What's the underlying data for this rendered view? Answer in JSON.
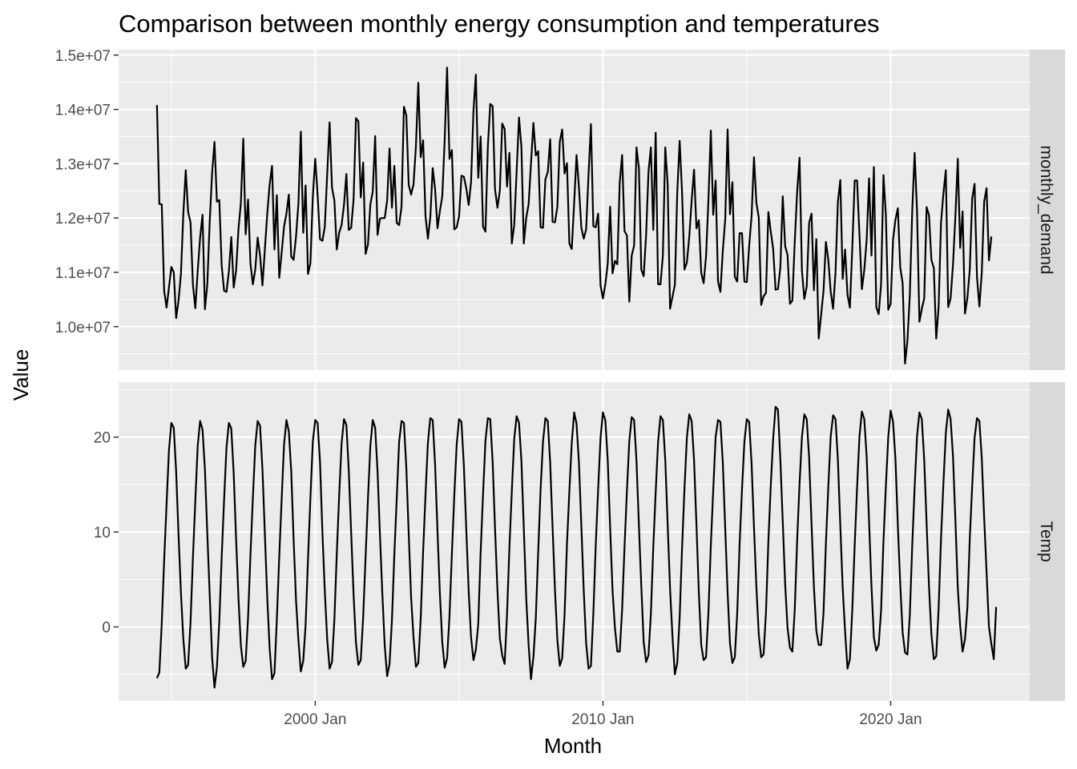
{
  "chart_data": {
    "type": "line",
    "title": "Comparison between monthly energy consumption and temperatures",
    "xlabel": "Month",
    "ylabel": "Value",
    "x_start": "1994-07",
    "x_range": [
      "1993-03",
      "2024-11"
    ],
    "x_ticks": [
      "2000 Jan",
      "2010 Jan",
      "2020 Jan"
    ],
    "x_tick_values": [
      "2000-01",
      "2010-01",
      "2020-01"
    ],
    "grid": true,
    "facets": [
      {
        "name": "monthly_demand",
        "ylim": [
          9200000,
          15100000
        ],
        "y_ticks": [
          "1.0e+07",
          "1.1e+07",
          "1.2e+07",
          "1.3e+07",
          "1.4e+07",
          "1.5e+07"
        ],
        "y_tick_values": [
          10000000,
          11000000,
          12000000,
          13000000,
          14000000,
          15000000
        ],
        "values": [
          14080000,
          12260000,
          12250000,
          10660000,
          10350000,
          10720000,
          11100000,
          11000000,
          10160000,
          10480000,
          10970000,
          12080000,
          12880000,
          12110000,
          11920000,
          10770000,
          10340000,
          11030000,
          11640000,
          12060000,
          10320000,
          10780000,
          11930000,
          12830000,
          13400000,
          12300000,
          12330000,
          11120000,
          10660000,
          10640000,
          11020000,
          11650000,
          10720000,
          11030000,
          11800000,
          12280000,
          13460000,
          11700000,
          12340000,
          11160000,
          10780000,
          11050000,
          11640000,
          11310000,
          10760000,
          11420000,
          12080000,
          12620000,
          12960000,
          11420000,
          12420000,
          10900000,
          11360000,
          11840000,
          12080000,
          12430000,
          11290000,
          11230000,
          11660000,
          12270000,
          13590000,
          11730000,
          12600000,
          10970000,
          11170000,
          12390000,
          13090000,
          12430000,
          11610000,
          11580000,
          11840000,
          12810000,
          13760000,
          12560000,
          12320000,
          11420000,
          11730000,
          11870000,
          12240000,
          12810000,
          11780000,
          11820000,
          12340000,
          13840000,
          13780000,
          12380000,
          13020000,
          11340000,
          11510000,
          12250000,
          12490000,
          13510000,
          11690000,
          11990000,
          12000000,
          12000000,
          12320000,
          13280000,
          12190000,
          12960000,
          11910000,
          11870000,
          12210000,
          14050000,
          13890000,
          12610000,
          12430000,
          12620000,
          13320000,
          14490000,
          13120000,
          13430000,
          12040000,
          11620000,
          12010000,
          12920000,
          12530000,
          11810000,
          12130000,
          12400000,
          13440000,
          14770000,
          13090000,
          13250000,
          11790000,
          11830000,
          12030000,
          12780000,
          12760000,
          12550000,
          12240000,
          12660000,
          13970000,
          14640000,
          12740000,
          13500000,
          11840000,
          11750000,
          13310000,
          14100000,
          14060000,
          12530000,
          12190000,
          12500000,
          13740000,
          13640000,
          12580000,
          13200000,
          11530000,
          11870000,
          12850000,
          13850000,
          13310000,
          11530000,
          12000000,
          12250000,
          13010000,
          13750000,
          13150000,
          13230000,
          11830000,
          11820000,
          12710000,
          12850000,
          13450000,
          11930000,
          11920000,
          12210000,
          13400000,
          13630000,
          12820000,
          13010000,
          11530000,
          11430000,
          12280000,
          13160000,
          12560000,
          11820000,
          11620000,
          11790000,
          12800000,
          13730000,
          11850000,
          11830000,
          12080000,
          10760000,
          10520000,
          10780000,
          11160000,
          12210000,
          10980000,
          11210000,
          11150000,
          12650000,
          13160000,
          11760000,
          11680000,
          10460000,
          11310000,
          11490000,
          13300000,
          12920000,
          11050000,
          10930000,
          11680000,
          12850000,
          13300000,
          11780000,
          13570000,
          10780000,
          10780000,
          11310000,
          13300000,
          12620000,
          10330000,
          10550000,
          10770000,
          12470000,
          13420000,
          12480000,
          11050000,
          11180000,
          11650000,
          12320000,
          12890000,
          11810000,
          11960000,
          10990000,
          10800000,
          11290000,
          12330000,
          13610000,
          12060000,
          12690000,
          10830000,
          10640000,
          11400000,
          11970000,
          13630000,
          12070000,
          12660000,
          10920000,
          10830000,
          11720000,
          11720000,
          10830000,
          10820000,
          11490000,
          12040000,
          13120000,
          12280000,
          12010000,
          10400000,
          10560000,
          10620000,
          12110000,
          11750000,
          11430000,
          10680000,
          10690000,
          11090000,
          12400000,
          11480000,
          11320000,
          10420000,
          10480000,
          11560000,
          12480000,
          13110000,
          11030000,
          10510000,
          10740000,
          11910000,
          12080000,
          10670000,
          11610000,
          9780000,
          10220000,
          10660000,
          11560000,
          11230000,
          10640000,
          10330000,
          11000000,
          12300000,
          12700000,
          10880000,
          11420000,
          10590000,
          10350000,
          11450000,
          12690000,
          12690000,
          11680000,
          10690000,
          11040000,
          11600000,
          12730000,
          11310000,
          12940000,
          10360000,
          10230000,
          10780000,
          12790000,
          12050000,
          10310000,
          10420000,
          11600000,
          11970000,
          12180000,
          11090000,
          10800000,
          9320000,
          9740000,
          10590000,
          12130000,
          13200000,
          12130000,
          10090000,
          10330000,
          10520000,
          12200000,
          12050000,
          11230000,
          11080000,
          9780000,
          10360000,
          11910000,
          12450000,
          12880000,
          10360000,
          10520000,
          11140000,
          12030000,
          13090000,
          11450000,
          12120000,
          10240000,
          10530000,
          11050000,
          12360000,
          12630000,
          10920000,
          10370000,
          10990000,
          12300000,
          12550000,
          11220000,
          11660000
        ]
      },
      {
        "name": "Temp",
        "ylim": [
          -7.8,
          25.8
        ],
        "y_ticks": [
          "0",
          "10",
          "20"
        ],
        "y_tick_values": [
          0,
          10,
          20
        ],
        "values": [
          -5.4,
          -4.8,
          0.4,
          7.0,
          12.9,
          18.6,
          21.5,
          21.0,
          16.4,
          9.7,
          3.6,
          -1.3,
          -4.4,
          -4.0,
          0.5,
          7.3,
          13.3,
          19.1,
          21.7,
          20.8,
          16.6,
          9.8,
          3.4,
          -3.2,
          -6.4,
          -4.3,
          0.6,
          7.4,
          13.4,
          18.9,
          21.5,
          20.9,
          16.2,
          9.3,
          3.0,
          -2.0,
          -4.2,
          -3.6,
          1.0,
          7.6,
          13.6,
          19.1,
          21.7,
          21.2,
          16.6,
          9.8,
          3.1,
          -2.3,
          -5.5,
          -4.9,
          0.8,
          7.4,
          13.4,
          19.2,
          21.8,
          20.6,
          16.4,
          9.2,
          2.8,
          -1.4,
          -4.7,
          -3.6,
          0.2,
          7.2,
          13.6,
          19.5,
          21.8,
          21.5,
          17.4,
          10.0,
          3.8,
          -1.3,
          -4.4,
          -3.7,
          0.8,
          7.7,
          13.9,
          19.3,
          21.9,
          21.3,
          16.5,
          9.9,
          3.4,
          -1.7,
          -4.0,
          -3.5,
          1.0,
          7.3,
          13.5,
          19.1,
          21.8,
          21.0,
          16.4,
          9.7,
          3.5,
          -2.0,
          -5.2,
          -3.9,
          0.7,
          7.6,
          13.5,
          19.5,
          21.7,
          21.5,
          16.8,
          9.8,
          3.1,
          -1.1,
          -4.2,
          -3.8,
          0.9,
          7.9,
          13.9,
          19.4,
          22.0,
          21.8,
          17.1,
          10.1,
          3.5,
          -1.6,
          -4.3,
          -3.3,
          1.1,
          7.7,
          13.8,
          19.2,
          21.9,
          21.6,
          17.0,
          10.3,
          3.8,
          -1.1,
          -3.5,
          -2.4,
          0.3,
          7.9,
          14.0,
          19.6,
          22.0,
          21.9,
          17.4,
          10.4,
          3.9,
          -1.2,
          -3.0,
          -3.9,
          1.3,
          8.4,
          14.3,
          19.8,
          22.2,
          21.5,
          17.5,
          10.4,
          3.1,
          -1.9,
          -5.5,
          -3.2,
          0.9,
          7.9,
          14.5,
          19.5,
          22.0,
          21.7,
          17.3,
          10.5,
          3.9,
          -1.4,
          -4.1,
          -3.3,
          1.3,
          8.7,
          14.3,
          19.4,
          22.6,
          21.4,
          17.3,
          10.6,
          3.8,
          -1.7,
          -4.4,
          -4.1,
          1.4,
          8.6,
          14.5,
          19.9,
          22.6,
          21.8,
          17.6,
          10.5,
          3.9,
          -0.1,
          -2.6,
          -2.6,
          1.8,
          8.4,
          14.3,
          19.6,
          22.1,
          21.8,
          17.5,
          10.7,
          4.3,
          -1.6,
          -3.7,
          -3.0,
          1.4,
          8.4,
          14.2,
          19.5,
          22.2,
          21.8,
          17.6,
          10.8,
          4.0,
          -1.0,
          -5.0,
          -3.8,
          1.0,
          8.3,
          14.5,
          19.9,
          22.4,
          21.7,
          17.6,
          10.8,
          3.6,
          -1.9,
          -3.5,
          -3.2,
          1.5,
          8.6,
          14.4,
          20.0,
          21.8,
          21.6,
          17.3,
          10.4,
          3.6,
          -1.8,
          -3.8,
          -3.2,
          1.4,
          8.7,
          14.5,
          19.5,
          21.9,
          21.6,
          17.2,
          10.5,
          4.2,
          -0.8,
          -3.2,
          -2.9,
          1.5,
          9.0,
          14.9,
          19.8,
          23.2,
          22.9,
          17.6,
          11.1,
          4.5,
          -0.1,
          -2.2,
          -2.6,
          1.8,
          9.1,
          15.1,
          20.0,
          22.4,
          21.9,
          17.8,
          10.9,
          4.2,
          -0.4,
          -1.9,
          -1.9,
          1.5,
          8.8,
          14.8,
          20.1,
          22.3,
          21.9,
          17.6,
          10.7,
          4.1,
          -0.5,
          -4.4,
          -3.4,
          1.8,
          8.6,
          14.7,
          20.1,
          22.7,
          21.9,
          17.9,
          11.1,
          4.3,
          -1.1,
          -2.5,
          -1.9,
          1.7,
          9.0,
          14.8,
          20.0,
          22.8,
          21.6,
          17.7,
          10.7,
          4.5,
          -0.6,
          -2.7,
          -2.9,
          1.3,
          8.6,
          14.7,
          20.1,
          22.6,
          21.9,
          17.6,
          10.9,
          4.2,
          -0.8,
          -3.4,
          -3.1,
          1.9,
          9.3,
          15.1,
          20.4,
          22.9,
          21.9,
          18.0,
          11.3,
          4.1,
          0.1,
          -2.6,
          -1.3,
          2.0,
          9.3,
          14.8,
          19.9,
          22.0,
          21.7,
          17.8,
          11.5,
          5.8,
          0.0,
          -1.8,
          -3.4,
          2.1
        ]
      }
    ]
  }
}
